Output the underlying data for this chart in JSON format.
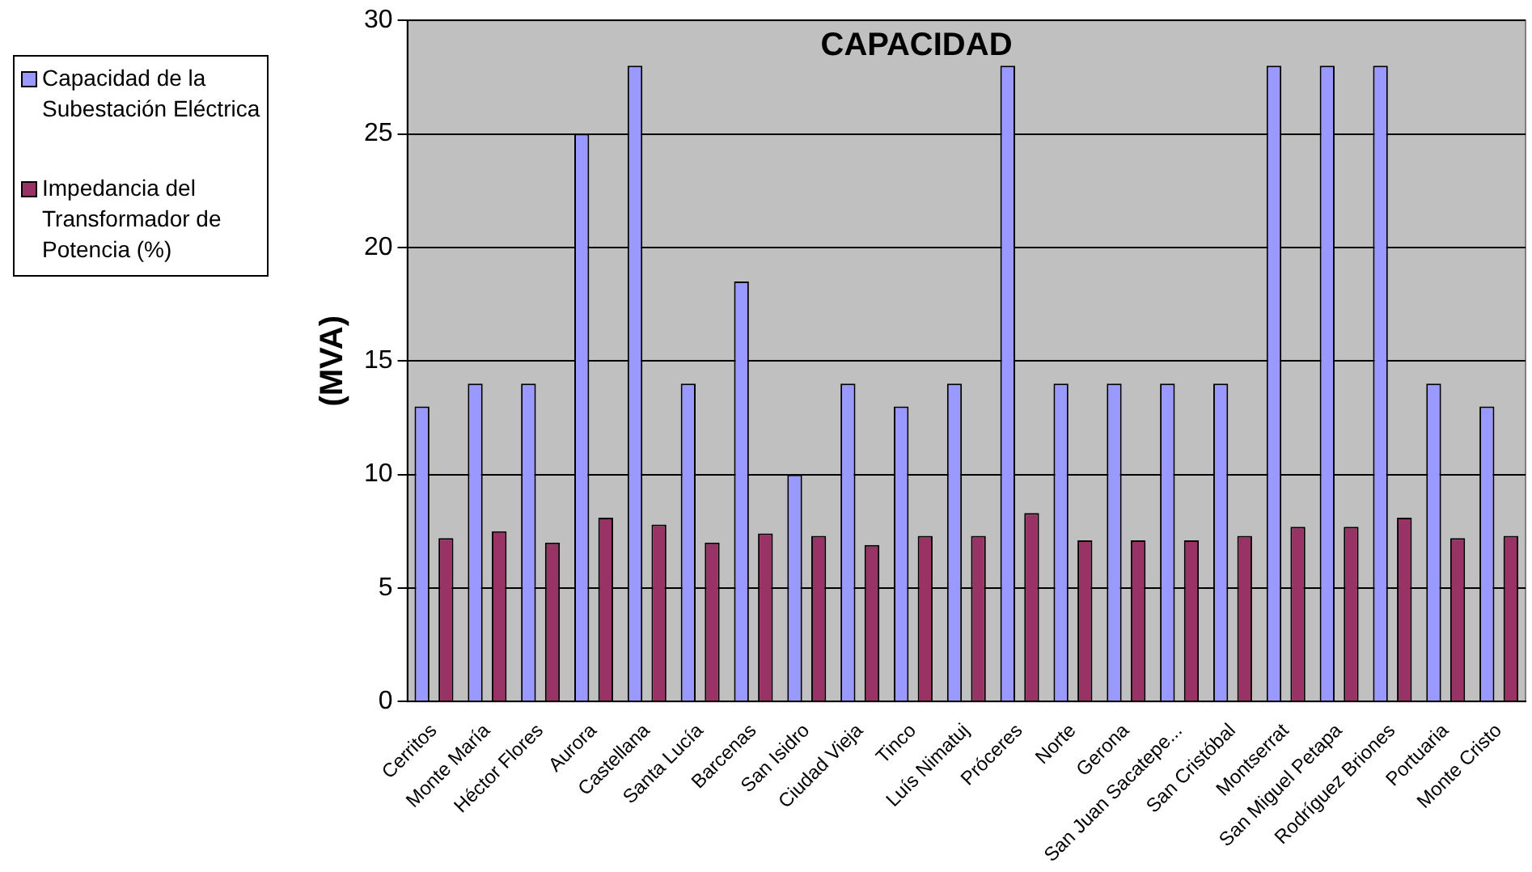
{
  "chart_data": {
    "type": "bar",
    "title": "CAPACIDAD",
    "ylabel": "(MVA)",
    "categories": [
      "Cerritos",
      "Monte María",
      "Héctor Flores",
      "Aurora",
      "Castellana",
      "Santa Lucía",
      "Barcenas",
      "San Isidro",
      "Ciudad Vieja",
      "Tinco",
      "Luís Nimatuj",
      "Próceres",
      "Norte",
      "Gerona",
      "San Juan Sacatepe...",
      "San Cristóbal",
      "Montserrat",
      "San Miguel Petapa",
      "Rodríguez Briones",
      "Portuaria",
      "Monte Cristo"
    ],
    "series": [
      {
        "name": "Capacidad de la Subestación Eléctrica",
        "color": "#9999ff",
        "values": [
          13,
          14,
          14,
          25,
          28,
          14,
          18.5,
          10,
          14,
          13,
          14,
          28,
          14,
          14,
          14,
          14,
          28,
          28,
          28,
          14,
          13
        ]
      },
      {
        "name": "Impedancia del Transformador de Potencia (%)",
        "color": "#993366",
        "values": [
          7.2,
          7.5,
          7,
          8.1,
          7.8,
          7,
          7.4,
          7.3,
          6.9,
          7.3,
          7.3,
          8.3,
          7.1,
          7.1,
          7.1,
          7.3,
          7.7,
          7.7,
          8.1,
          7.2,
          7.3
        ]
      }
    ],
    "ylim": [
      0,
      30
    ],
    "yticks": [
      0,
      5,
      10,
      15,
      20,
      25,
      30
    ],
    "grid": "y",
    "legend": "left"
  }
}
